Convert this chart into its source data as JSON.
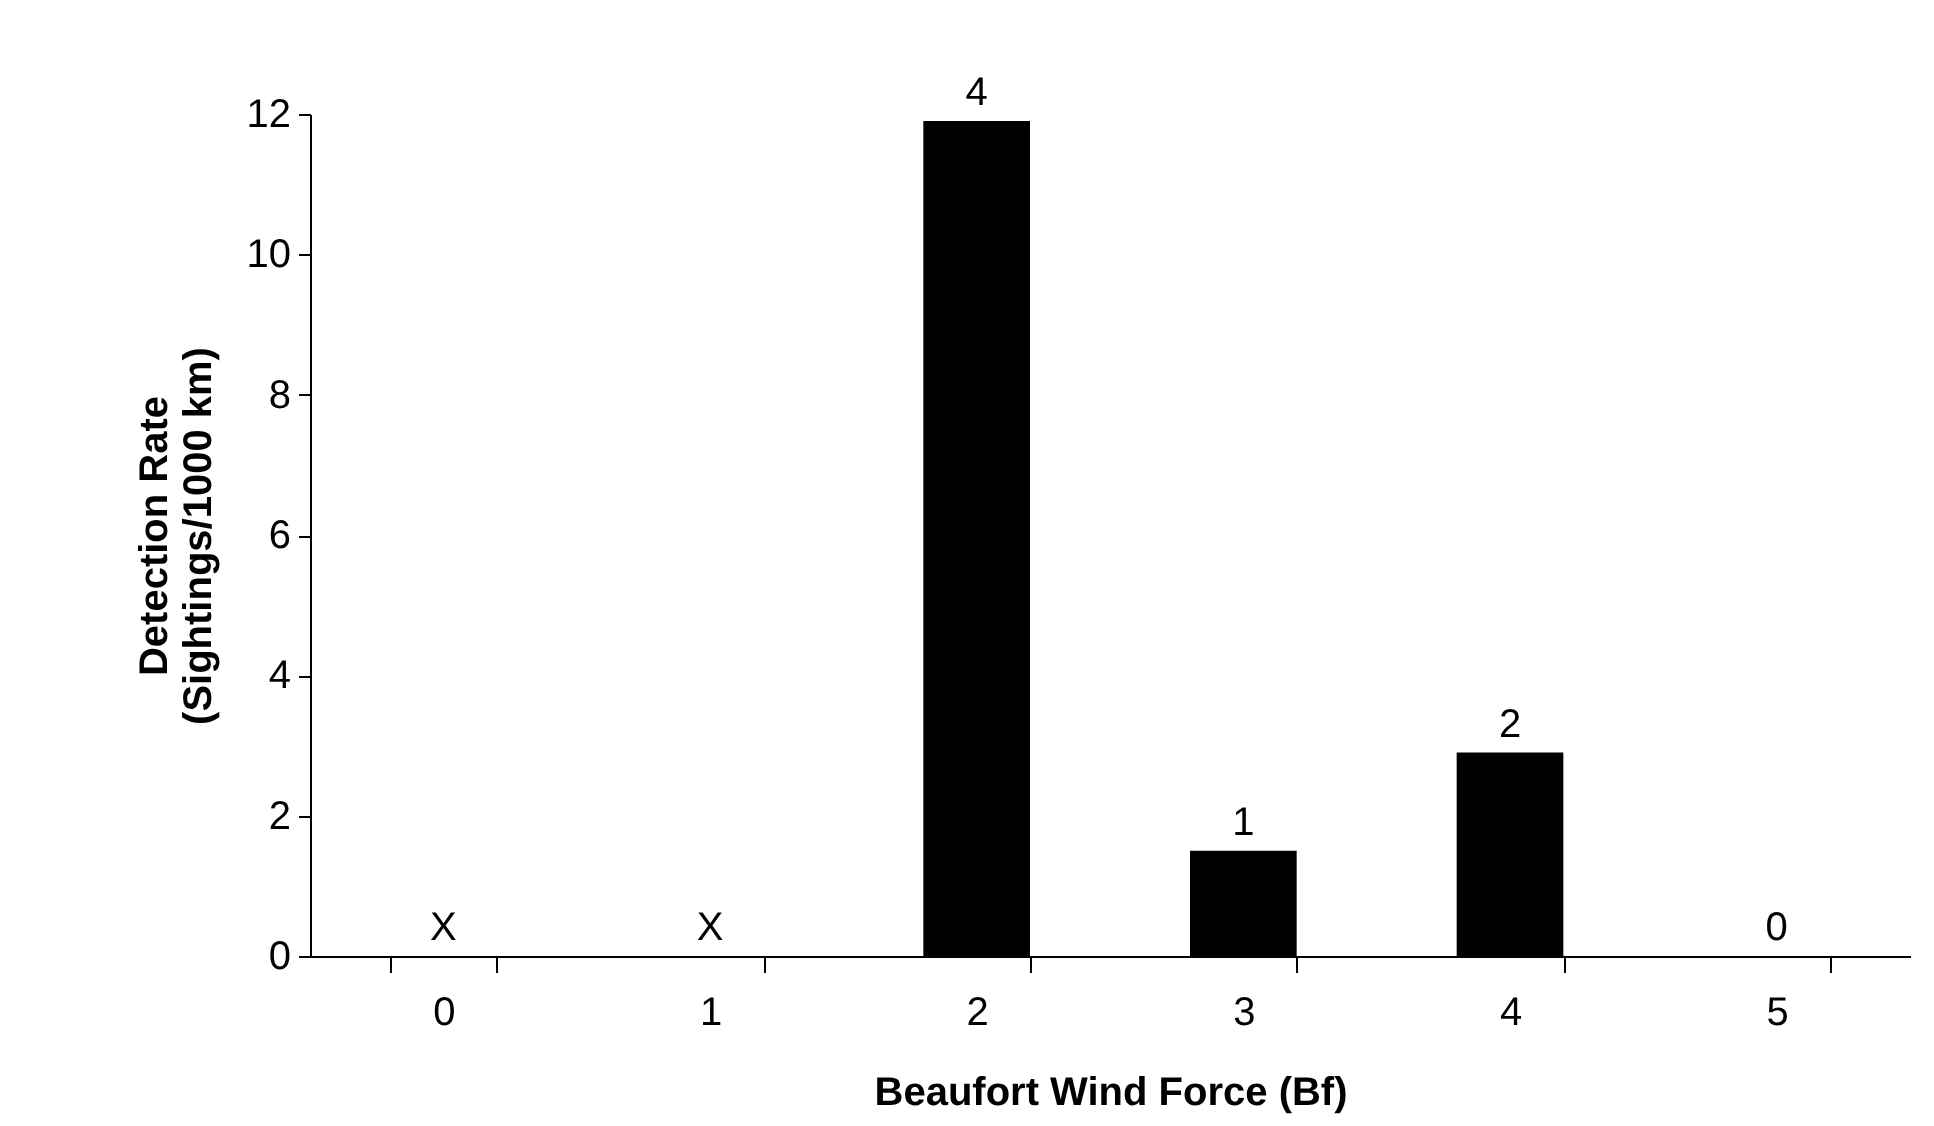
{
  "chart_data": {
    "type": "bar",
    "xlabel": "Beaufort Wind Force (Bf)",
    "ylabel": "Detection Rate\n(Sightings/1000 km)",
    "categories": [
      "0",
      "1",
      "2",
      "3",
      "4",
      "5"
    ],
    "values": [
      null,
      null,
      11.9,
      1.5,
      2.9,
      0
    ],
    "annotations": [
      "X",
      "X",
      {
        "text": "4",
        "x": "2",
        "y": 11.9
      },
      {
        "text": "1",
        "x": "3",
        "y": 1.5
      },
      {
        "text": "2",
        "x": "4",
        "y": 2.9
      },
      {
        "text": "0",
        "x": "5",
        "y": 0
      }
    ],
    "color": "#000000",
    "ylim": [
      0,
      12
    ],
    "yticks": [
      0,
      2,
      4,
      6,
      8,
      10,
      12
    ],
    "grid": false
  }
}
